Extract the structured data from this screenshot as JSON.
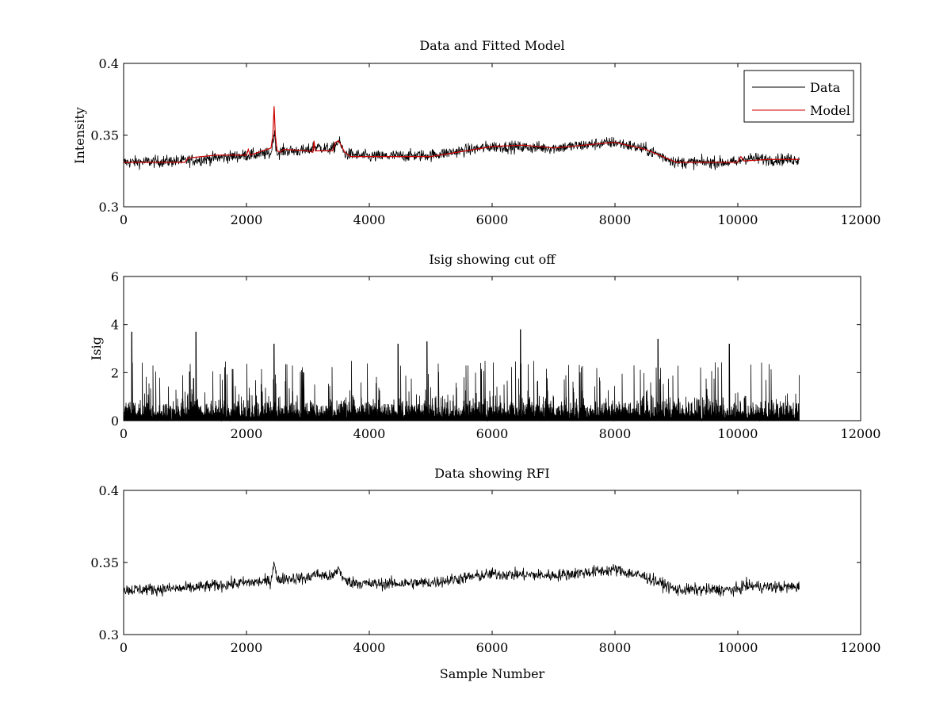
{
  "figure": {
    "background": "#ffffff",
    "xlabel": "Sample Number"
  },
  "chart_data": [
    {
      "type": "line",
      "title": "Data and Fitted Model",
      "xlabel": "",
      "ylabel": "Intensity",
      "xlim": [
        0,
        12000
      ],
      "ylim": [
        0.3,
        0.4
      ],
      "xticks": [
        0,
        2000,
        4000,
        6000,
        8000,
        10000,
        12000
      ],
      "yticks": [
        0.3,
        0.35,
        0.4
      ],
      "xtick_labels": [
        "0",
        "2000",
        "4000",
        "6000",
        "8000",
        "10000",
        "12000"
      ],
      "ytick_labels": [
        "0.3",
        "0.35",
        "0.4"
      ],
      "legend": {
        "location": "top-right",
        "entries": [
          "Data",
          "Model"
        ]
      },
      "series": [
        {
          "name": "Data",
          "color": "#000000",
          "render": "noisy",
          "noise_amplitude": 0.0045,
          "x": [
            0,
            1000,
            2000,
            2400,
            2450,
            2500,
            2600,
            3000,
            3100,
            3400,
            3500,
            3600,
            4000,
            5000,
            6000,
            7000,
            8000,
            8500,
            9000,
            9500,
            10000,
            10100,
            10500,
            11000
          ],
          "y": [
            0.331,
            0.332,
            0.336,
            0.337,
            0.352,
            0.337,
            0.339,
            0.339,
            0.342,
            0.34,
            0.346,
            0.337,
            0.335,
            0.336,
            0.342,
            0.341,
            0.345,
            0.34,
            0.331,
            0.331,
            0.331,
            0.334,
            0.333,
            0.333
          ]
        },
        {
          "name": "Model",
          "color": "#cc0000",
          "render": "smooth",
          "x": [
            0,
            1000,
            1050,
            1500,
            2000,
            2030,
            2060,
            2400,
            2430,
            2450,
            2470,
            2500,
            2550,
            2600,
            3000,
            3080,
            3100,
            3120,
            3400,
            3450,
            3500,
            3600,
            3700,
            4000,
            5000,
            6000,
            6500,
            7000,
            7500,
            8000,
            8500,
            9000,
            9500,
            10000,
            10050,
            10100,
            10500,
            11000
          ],
          "y": [
            0.331,
            0.331,
            0.334,
            0.336,
            0.336,
            0.34,
            0.336,
            0.341,
            0.35,
            0.37,
            0.35,
            0.339,
            0.338,
            0.34,
            0.339,
            0.338,
            0.346,
            0.339,
            0.339,
            0.345,
            0.346,
            0.338,
            0.335,
            0.335,
            0.335,
            0.342,
            0.343,
            0.341,
            0.343,
            0.345,
            0.34,
            0.331,
            0.331,
            0.331,
            0.335,
            0.332,
            0.333,
            0.333
          ]
        }
      ]
    },
    {
      "type": "line",
      "title": "Isig showing cut off",
      "xlabel": "",
      "ylabel": "Isig",
      "xlim": [
        0,
        12000
      ],
      "ylim": [
        0,
        6
      ],
      "xticks": [
        0,
        2000,
        4000,
        6000,
        8000,
        10000,
        12000
      ],
      "yticks": [
        0,
        2,
        4,
        6
      ],
      "xtick_labels": [
        "0",
        "2000",
        "4000",
        "6000",
        "8000",
        "10000",
        "12000"
      ],
      "ytick_labels": [
        "0",
        "2",
        "4",
        "6"
      ],
      "series": [
        {
          "name": "Isig",
          "color": "#000000",
          "render": "spiky",
          "x_range": [
            0,
            11000
          ],
          "typical_max": 2.5,
          "peaks_x": [
            130,
            1180,
            2450,
            4470,
            4940,
            6460,
            8700,
            9860
          ],
          "peaks_y": [
            3.7,
            3.7,
            3.2,
            3.2,
            3.3,
            3.8,
            3.4,
            3.2
          ]
        }
      ]
    },
    {
      "type": "line",
      "title": "Data showing RFI",
      "xlabel": "Sample Number",
      "ylabel": "",
      "xlim": [
        0,
        12000
      ],
      "ylim": [
        0.3,
        0.4
      ],
      "xticks": [
        0,
        2000,
        4000,
        6000,
        8000,
        10000,
        12000
      ],
      "yticks": [
        0.3,
        0.35,
        0.4
      ],
      "xtick_labels": [
        "0",
        "2000",
        "4000",
        "6000",
        "8000",
        "10000",
        "12000"
      ],
      "ytick_labels": [
        "0.3",
        "0.35",
        "0.4"
      ],
      "series": [
        {
          "name": "Data",
          "color": "#000000",
          "render": "noisy",
          "noise_amplitude": 0.0045,
          "x": [
            0,
            1000,
            2000,
            2400,
            2450,
            2500,
            2600,
            3000,
            3100,
            3400,
            3500,
            3600,
            4000,
            5000,
            6000,
            7000,
            8000,
            8500,
            9000,
            9500,
            10000,
            10100,
            10500,
            11000
          ],
          "y": [
            0.331,
            0.332,
            0.336,
            0.337,
            0.352,
            0.337,
            0.339,
            0.339,
            0.342,
            0.34,
            0.346,
            0.337,
            0.335,
            0.336,
            0.342,
            0.341,
            0.345,
            0.34,
            0.331,
            0.331,
            0.331,
            0.334,
            0.333,
            0.333
          ]
        }
      ]
    }
  ]
}
